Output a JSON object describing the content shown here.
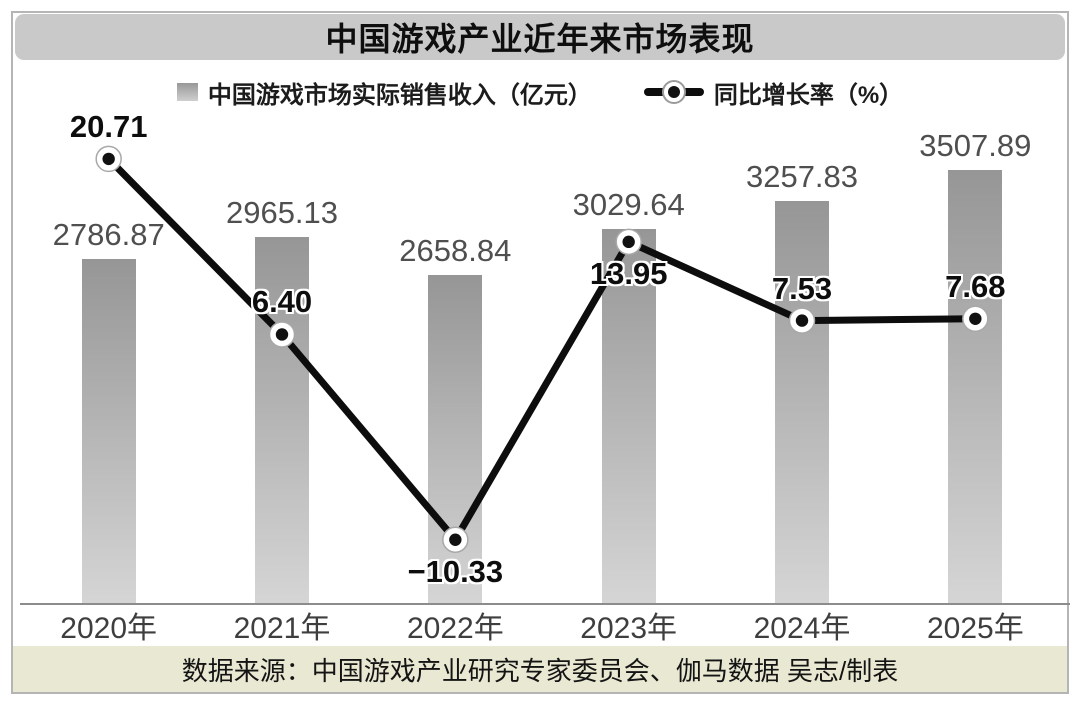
{
  "title": "中国游戏产业近年来市场表现",
  "legend": {
    "bar_label": "中国游戏市场实际销售收入（亿元）",
    "line_label": "同比增长率（%）"
  },
  "footer": {
    "source": "数据来源：中国游戏产业研究专家委员会、伽马数据 吴志/制表"
  },
  "colors": {
    "title_band": "#c9c9c9",
    "bar_top": "#969696",
    "bar_bottom": "#d5d5d5",
    "line": "#0d0d0d",
    "footer_band": "#e9e8d2",
    "axis": "#8c8c8c"
  },
  "chart_data": {
    "type": "bar",
    "subtype": "bar+line combo",
    "title": "中国游戏产业近年来市场表现",
    "categories": [
      "2020年",
      "2021年",
      "2022年",
      "2023年",
      "2024年",
      "2025年"
    ],
    "series": [
      {
        "name": "中国游戏市场实际销售收入（亿元）",
        "type": "bar",
        "values": [
          2786.87,
          2965.13,
          2658.84,
          3029.64,
          3257.83,
          3507.89
        ],
        "labels": [
          "2786.87",
          "2965.13",
          "2658.84",
          "3029.64",
          "3257.83",
          "3507.89"
        ]
      },
      {
        "name": "同比增长率（%）",
        "type": "line",
        "values": [
          20.71,
          6.4,
          -10.33,
          13.95,
          7.53,
          7.68
        ],
        "labels": [
          "20.71",
          "6.40",
          "−10.33",
          "13.95",
          "7.53",
          "7.68"
        ]
      }
    ],
    "xlabel": "",
    "ylabel_left": "亿元",
    "ylabel_right": "%",
    "ylim_bar": [
      0,
      3700
    ],
    "ylim_line": [
      -16,
      26
    ],
    "grid": false,
    "legend_position": "top"
  }
}
